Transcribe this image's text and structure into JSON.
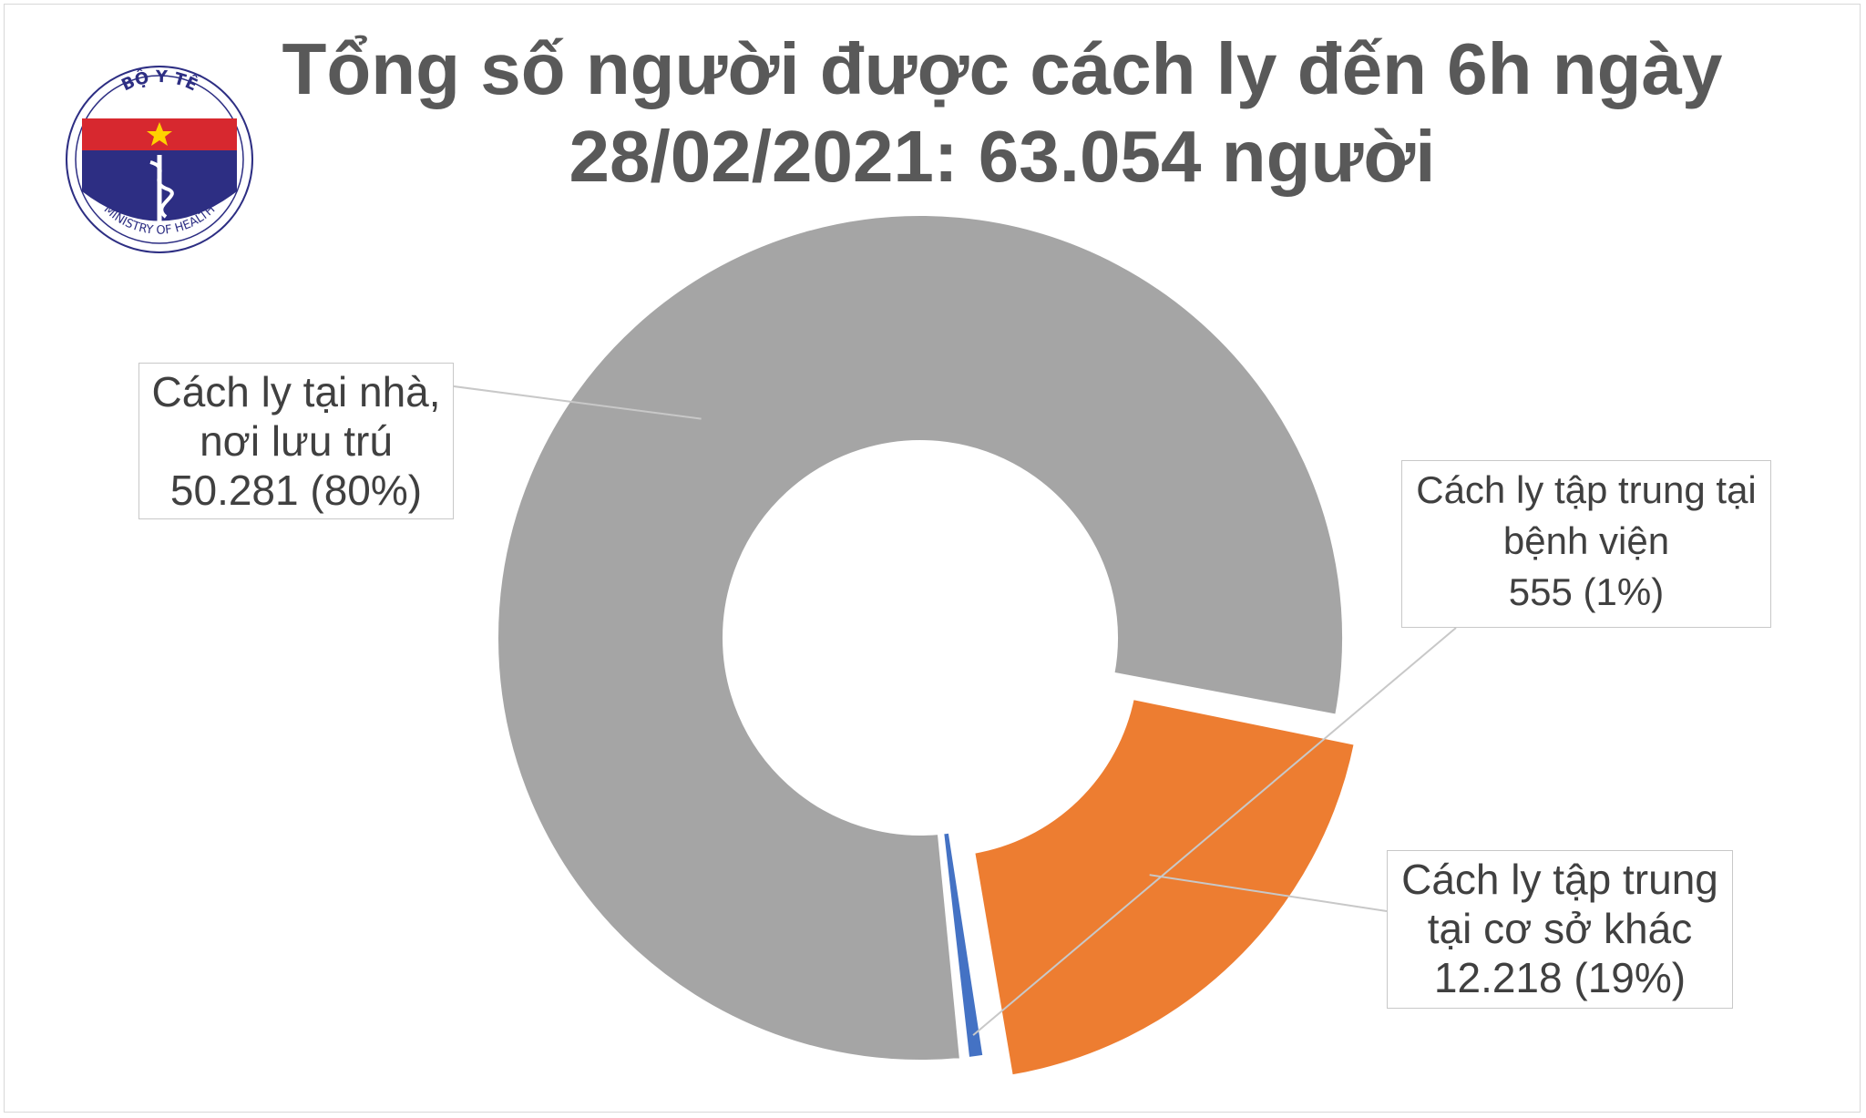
{
  "title": {
    "line1": "Tổng số người được cách ly đến 6h ngày",
    "line2": "28/02/2021: 63.054 người"
  },
  "logo": {
    "top_text": "BỘ Y TẾ",
    "bottom_text": "MINISTRY OF HEALTH"
  },
  "colors": {
    "home": "#a5a5a5",
    "hospital": "#4472c4",
    "other": "#ed7d31",
    "title": "#595959",
    "label_text": "#404040"
  },
  "chart_data": {
    "type": "pie",
    "subtype": "donut",
    "title": "Tổng số người được cách ly đến 6h ngày 28/02/2021: 63.054 người",
    "total": 63054,
    "slices": [
      {
        "key": "hospital",
        "value": 555,
        "percent": 1,
        "label_lines": [
          "Cách ly tập trung tại",
          "bệnh viện",
          "555 (1%)"
        ],
        "color": "#4472c4"
      },
      {
        "key": "other",
        "value": 12218,
        "percent": 19,
        "label_lines": [
          "Cách ly tập trung",
          "tại cơ sở khác",
          "12.218 (19%)"
        ],
        "color": "#ed7d31"
      },
      {
        "key": "home",
        "value": 50281,
        "percent": 80,
        "label_lines": [
          "Cách ly tại nhà,",
          "nơi lưu trú",
          "50.281 (80%)"
        ],
        "color": "#a5a5a5"
      }
    ]
  }
}
